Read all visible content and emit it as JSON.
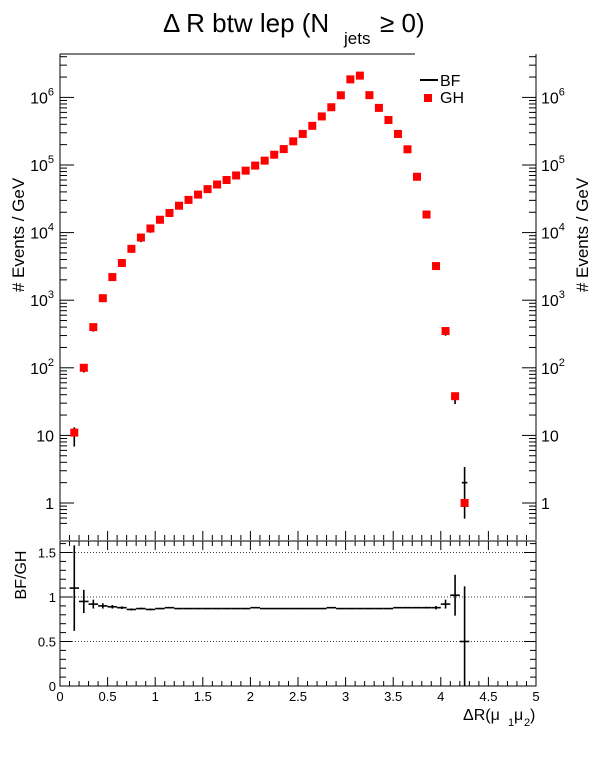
{
  "title": {
    "main": "Δ R btw lep (N",
    "sub": "jets",
    "tail": " ≥ 0)"
  },
  "chart_data": [
    {
      "type": "scatter",
      "panel": "top",
      "ylabel": "# Events / GeV",
      "yscale": "log",
      "ylim": [
        0.5,
        4000000
      ],
      "xlim": [
        0,
        5
      ],
      "legend": {
        "placement": "top-right",
        "entries": [
          "BF",
          "GH"
        ]
      },
      "y_tick_labels": [
        "1",
        "10",
        "10^2",
        "10^3",
        "10^4",
        "10^5",
        "10^6"
      ],
      "x": [
        0.15,
        0.25,
        0.35,
        0.45,
        0.55,
        0.65,
        0.75,
        0.85,
        0.95,
        1.05,
        1.15,
        1.25,
        1.35,
        1.45,
        1.55,
        1.65,
        1.75,
        1.85,
        1.95,
        2.05,
        2.15,
        2.25,
        2.35,
        2.45,
        2.55,
        2.65,
        2.75,
        2.85,
        2.95,
        3.05,
        3.15,
        3.25,
        3.35,
        3.45,
        3.55,
        3.65,
        3.75,
        3.85,
        3.95,
        4.05,
        4.15,
        4.25
      ],
      "series": [
        {
          "name": "BF",
          "color": "#000000",
          "marker": "cross",
          "values": [
            10,
            95,
            380,
            1050,
            2150,
            3450,
            5550,
            8000,
            11000,
            15000,
            19000,
            24500,
            29500,
            35500,
            43000,
            50500,
            58500,
            68500,
            80500,
            95500,
            113000,
            138000,
            168000,
            218000,
            280000,
            370000,
            510000,
            700000,
            1050000,
            1800000,
            2050000,
            1050000,
            680000,
            450000,
            280000,
            165000,
            65000,
            18000,
            3100,
            330,
            35,
            2
          ]
        },
        {
          "name": "GH",
          "color": "#ff0000",
          "marker": "square",
          "values": [
            11,
            100,
            400,
            1070,
            2200,
            3550,
            5750,
            8450,
            11500,
            15500,
            19500,
            25000,
            30500,
            36500,
            44000,
            51500,
            60000,
            70000,
            82500,
            98000,
            116000,
            142000,
            172000,
            224000,
            288000,
            380000,
            523000,
            715000,
            1075000,
            1850000,
            2100000,
            1080000,
            700000,
            463000,
            288000,
            171000,
            67000,
            18500,
            3200,
            350,
            38,
            1
          ]
        }
      ]
    },
    {
      "type": "scatter",
      "panel": "ratio",
      "ylabel": "BF/GH",
      "xlabel": "ΔR(μ",
      "xlabel_sub1": "1",
      "xlabel_mid": "μ",
      "xlabel_sub2": "2",
      "xlabel_tail": ")",
      "xlim": [
        0,
        5
      ],
      "ylim": [
        0,
        1.65
      ],
      "gridlines": [
        0.5,
        1,
        1.5
      ],
      "y_tick_labels": [
        "0",
        "0.5",
        "1",
        "1.5"
      ],
      "x_tick_labels": [
        "0",
        "0.5",
        "1",
        "1.5",
        "2",
        "2.5",
        "3",
        "3.5",
        "4",
        "4.5",
        "5"
      ],
      "x": [
        0.15,
        0.25,
        0.35,
        0.45,
        0.55,
        0.65,
        0.75,
        0.85,
        0.95,
        1.05,
        1.15,
        1.25,
        1.35,
        1.45,
        1.55,
        1.65,
        1.75,
        1.85,
        1.95,
        2.05,
        2.15,
        2.25,
        2.35,
        2.45,
        2.55,
        2.65,
        2.75,
        2.85,
        2.95,
        3.05,
        3.15,
        3.25,
        3.35,
        3.45,
        3.55,
        3.65,
        3.75,
        3.85,
        3.95,
        4.05,
        4.15,
        4.25
      ],
      "series": [
        {
          "name": "BF/GH",
          "color": "#000000",
          "values": [
            1.1,
            0.95,
            0.92,
            0.9,
            0.89,
            0.88,
            0.86,
            0.87,
            0.86,
            0.87,
            0.88,
            0.87,
            0.87,
            0.87,
            0.87,
            0.87,
            0.87,
            0.87,
            0.87,
            0.88,
            0.87,
            0.87,
            0.87,
            0.87,
            0.87,
            0.87,
            0.87,
            0.88,
            0.87,
            0.87,
            0.87,
            0.87,
            0.87,
            0.87,
            0.88,
            0.88,
            0.88,
            0.88,
            0.88,
            0.92,
            1.02,
            0.5
          ],
          "errors": [
            0.48,
            0.13,
            0.05,
            0.03,
            0.02,
            0.015,
            0.012,
            0.01,
            0.01,
            0.008,
            0.008,
            0.007,
            0.007,
            0.006,
            0.006,
            0.006,
            0.006,
            0.006,
            0.006,
            0.005,
            0.005,
            0.005,
            0.005,
            0.005,
            0.005,
            0.005,
            0.005,
            0.005,
            0.005,
            0.005,
            0.005,
            0.005,
            0.005,
            0.005,
            0.005,
            0.005,
            0.006,
            0.01,
            0.02,
            0.05,
            0.23,
            0.62
          ]
        }
      ]
    }
  ]
}
